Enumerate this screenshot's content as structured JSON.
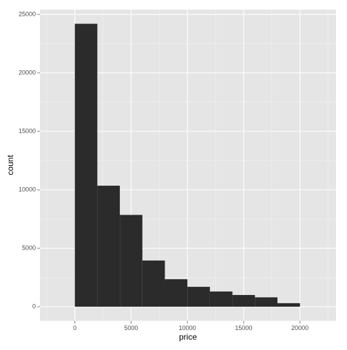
{
  "chart_data": {
    "type": "histogram",
    "x_label": "price",
    "y_label": "count",
    "bins": [
      0,
      2000,
      4000,
      6000,
      8000,
      10000,
      12000,
      14000,
      16000,
      18000,
      20000
    ],
    "counts": [
      24200,
      10350,
      7850,
      3950,
      2350,
      1700,
      1300,
      1000,
      800,
      300
    ],
    "color": "#2b2b2b",
    "xlim": [
      -3100,
      23200
    ],
    "xticks": [
      0,
      5000,
      10000,
      15000,
      20000
    ],
    "ylim": [
      -1210,
      25410
    ],
    "yticks": [
      0,
      5000,
      10000,
      15000,
      20000,
      25000
    ],
    "grid": true
  }
}
